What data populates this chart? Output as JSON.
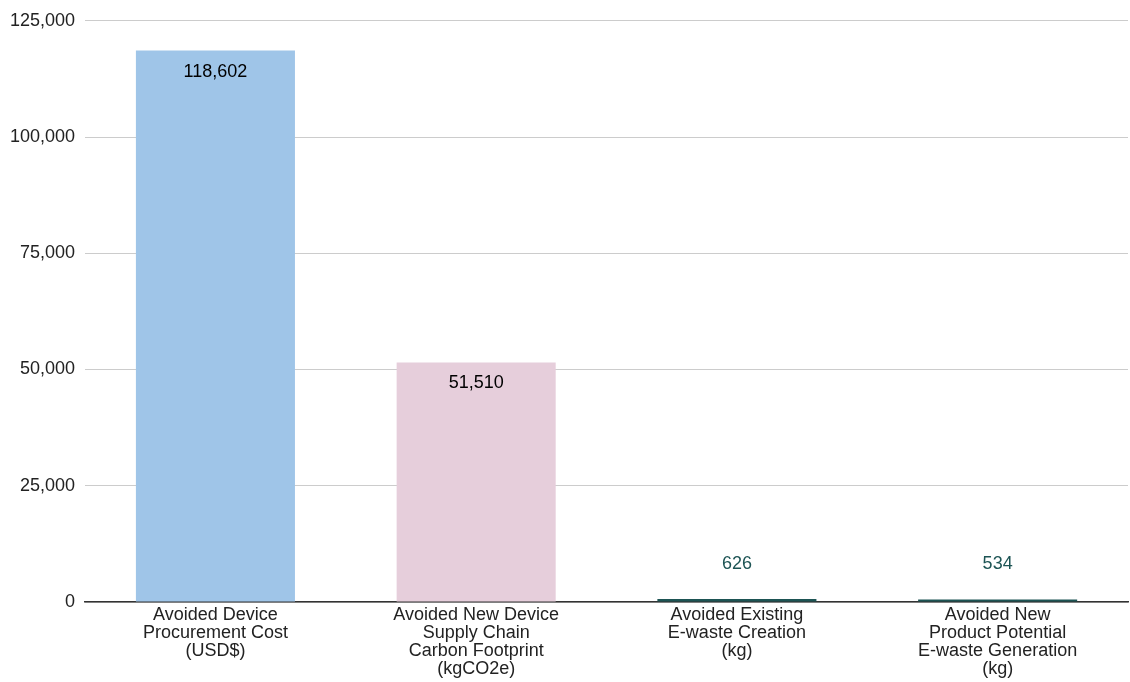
{
  "chart_data": {
    "type": "bar",
    "categories": [
      "Avoided Device Procurement Cost (USD$)",
      "Avoided New Device Supply Chain Carbon Footprint (kgCO2e)",
      "Avoided Existing E-waste Creation (kg)",
      "Avoided New Product Potential E-waste Generation (kg)"
    ],
    "values": [
      118602,
      51510,
      626,
      534
    ],
    "value_labels": [
      "118,602",
      "51,510",
      "626",
      "534"
    ],
    "colors": [
      "#9fc5e8",
      "#e6cedb",
      "#1d5454",
      "#1d5454"
    ],
    "ylim": [
      0,
      125000
    ],
    "yticks": [
      0,
      {
        "value": 25000,
        "label": "25,000"
      },
      {
        "value": 50000,
        "label": "50,000"
      },
      {
        "value": 75000,
        "label": "75,000"
      },
      {
        "value": 100000,
        "label": "100,000"
      },
      {
        "value": 125000,
        "label": "125,000"
      }
    ],
    "grid": "y",
    "legend": false
  }
}
